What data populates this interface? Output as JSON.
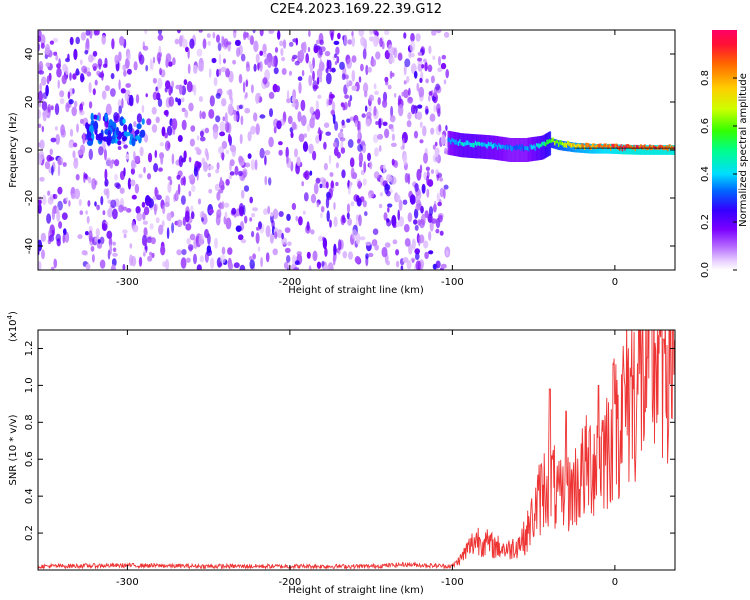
{
  "page_title": "C2E4.2023.169.22.39.G12",
  "colorbar": {
    "label": "Normalized spectral amplitude",
    "ticks": [
      "0.0",
      "0.2",
      "0.4",
      "0.6",
      "0.8"
    ],
    "tick_values": [
      0,
      0.2,
      0.4,
      0.6,
      0.8
    ],
    "range": [
      0,
      1
    ],
    "colors": [
      "#ffffff",
      "#e6ccff",
      "#b366ff",
      "#7a00ff",
      "#3300ff",
      "#0066ff",
      "#00ddff",
      "#00ff88",
      "#33ff00",
      "#ccff00",
      "#ffcc00",
      "#ff6600",
      "#ff1133",
      "#ff0066"
    ]
  },
  "chart_data": [
    {
      "type": "heatmap",
      "title": "",
      "xlabel": "Height of straight line (km)",
      "ylabel": "Frequency (Hz)",
      "xlim": [
        -355,
        37
      ],
      "ylim": [
        -50,
        50
      ],
      "x_ticks": [
        -300,
        -200,
        -100,
        0
      ],
      "x_tick_labels": [
        "-300",
        "-200",
        "-100",
        "0"
      ],
      "y_ticks": [
        -40,
        -20,
        0,
        20,
        40
      ],
      "y_tick_labels": [
        "-40",
        "-20",
        "0",
        "20",
        "40"
      ],
      "noise_region_x": [
        -355,
        -103
      ],
      "noise_amplitude": 0.1,
      "signal_track": {
        "x": [
          -103,
          -95,
          -85,
          -75,
          -65,
          -55,
          -45,
          -40,
          -35,
          -25,
          -15,
          -5,
          5,
          15,
          25,
          37
        ],
        "freq": [
          3,
          2,
          1.5,
          1,
          0,
          0,
          1,
          3,
          2,
          1,
          0.5,
          0.5,
          0.2,
          0,
          0,
          0
        ],
        "amplitude": [
          0.35,
          0.45,
          0.45,
          0.4,
          0.35,
          0.35,
          0.5,
          0.6,
          0.7,
          0.8,
          0.85,
          0.9,
          0.95,
          0.95,
          0.95,
          0.95
        ]
      },
      "early_blob": {
        "x": [
          -325,
          -290
        ],
        "freq": [
          2,
          14
        ],
        "amplitude": 0.35
      }
    },
    {
      "type": "line",
      "title": "",
      "xlabel": "Height of straight line (km)",
      "ylabel": "SNR (10 * v/v)",
      "y_multiplier": "(x10",
      "y_multiplier_exp": "4",
      "y_multiplier_close": ")",
      "xlim": [
        -355,
        37
      ],
      "ylim": [
        0,
        1.3
      ],
      "x_ticks": [
        -300,
        -200,
        -100,
        0
      ],
      "x_tick_labels": [
        "-300",
        "-200",
        "-100",
        "0"
      ],
      "y_ticks": [
        0.2,
        0.4,
        0.6,
        0.8,
        1.0,
        1.2
      ],
      "y_tick_labels": [
        "0.2",
        "0.4",
        "0.6",
        "0.8",
        "1.0",
        "1.2"
      ],
      "series": [
        {
          "color": "#ee3333",
          "x": [
            -355,
            -300,
            -250,
            -200,
            -150,
            -130,
            -100,
            -95,
            -90,
            -85,
            -80,
            -75,
            -70,
            -65,
            -60,
            -55,
            -50,
            -45,
            -40,
            -35,
            -30,
            -25,
            -20,
            -15,
            -10,
            -5,
            0,
            5,
            10,
            15,
            20,
            25,
            30,
            37
          ],
          "values": [
            0.02,
            0.025,
            0.02,
            0.02,
            0.02,
            0.03,
            0.02,
            0.06,
            0.12,
            0.17,
            0.15,
            0.13,
            0.12,
            0.11,
            0.14,
            0.18,
            0.3,
            0.42,
            0.52,
            0.38,
            0.4,
            0.45,
            0.52,
            0.58,
            0.62,
            0.68,
            0.78,
            0.88,
            0.95,
            1.02,
            1.08,
            1.15,
            1.22,
            1.27
          ],
          "spikes": [
            [
              -40,
              0.98
            ],
            [
              -30,
              0.86
            ],
            [
              -10,
              1.0
            ],
            [
              0,
              0.9
            ],
            [
              10,
              1.05
            ],
            [
              20,
              1.15
            ],
            [
              30,
              1.25
            ]
          ]
        }
      ]
    }
  ]
}
